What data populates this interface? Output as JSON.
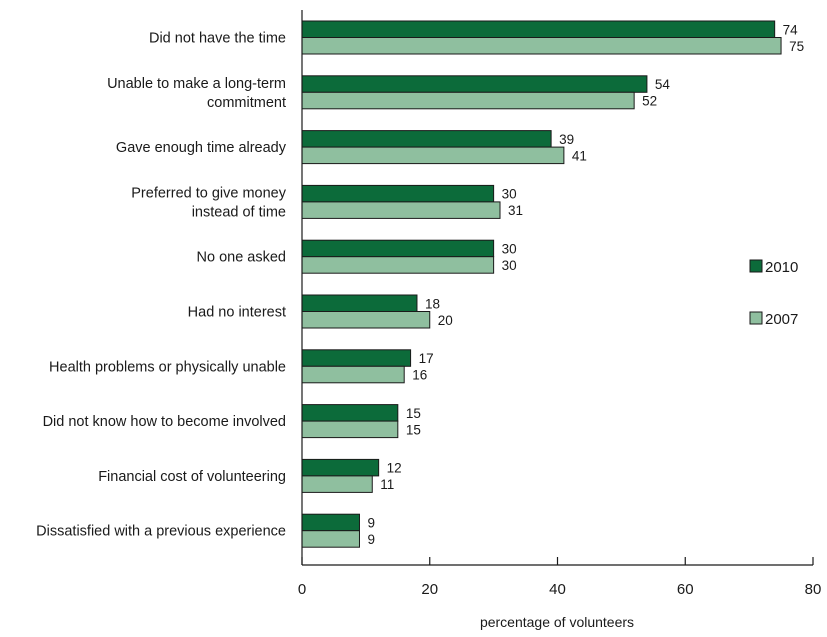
{
  "chart_data": {
    "type": "bar",
    "orientation": "horizontal",
    "categories": [
      [
        "Did not have the time"
      ],
      [
        "Unable to make a long-term",
        "commitment"
      ],
      [
        "Gave enough time already"
      ],
      [
        "Preferred to give money",
        "instead of time"
      ],
      [
        "No one asked"
      ],
      [
        "Had no interest"
      ],
      [
        "Health problems or physically unable"
      ],
      [
        "Did not know how to become involved"
      ],
      [
        "Financial cost of volunteering"
      ],
      [
        "Dissatisfied with a previous experience"
      ]
    ],
    "series": [
      {
        "name": "2010",
        "color": "#0c6b3a",
        "values": [
          74,
          54,
          39,
          30,
          30,
          18,
          17,
          15,
          12,
          9
        ]
      },
      {
        "name": "2007",
        "color": "#8fbf9f",
        "values": [
          75,
          52,
          41,
          31,
          30,
          20,
          16,
          15,
          11,
          9
        ]
      }
    ],
    "xlabel": "percentage of volunteers",
    "xlim": [
      0,
      80
    ],
    "xticks": [
      0,
      20,
      40,
      60,
      80
    ],
    "grid": false,
    "legend_position": "right"
  }
}
